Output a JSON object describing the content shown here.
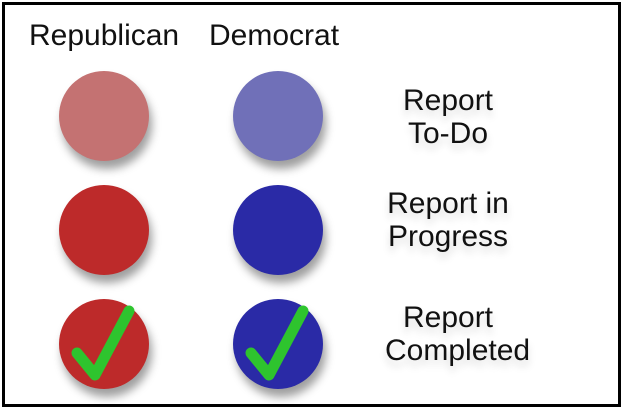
{
  "headers": {
    "republican": "Republican",
    "democrat": "Democrat"
  },
  "rows": [
    {
      "label": "Report\nTo-Do",
      "republican_color": "#c47272",
      "democrat_color": "#7070b8",
      "checked": false
    },
    {
      "label": "Report in\nProgress",
      "republican_color": "#bd2a2a",
      "democrat_color": "#2a2aa6",
      "checked": false
    },
    {
      "label": "Report\nCompleted",
      "republican_color": "#bd2a2a",
      "democrat_color": "#2a2aa6",
      "checked": true
    }
  ],
  "check_color": "#2ec42e",
  "icons": {
    "status": "circle-status-icon",
    "complete": "checkmark-icon"
  }
}
